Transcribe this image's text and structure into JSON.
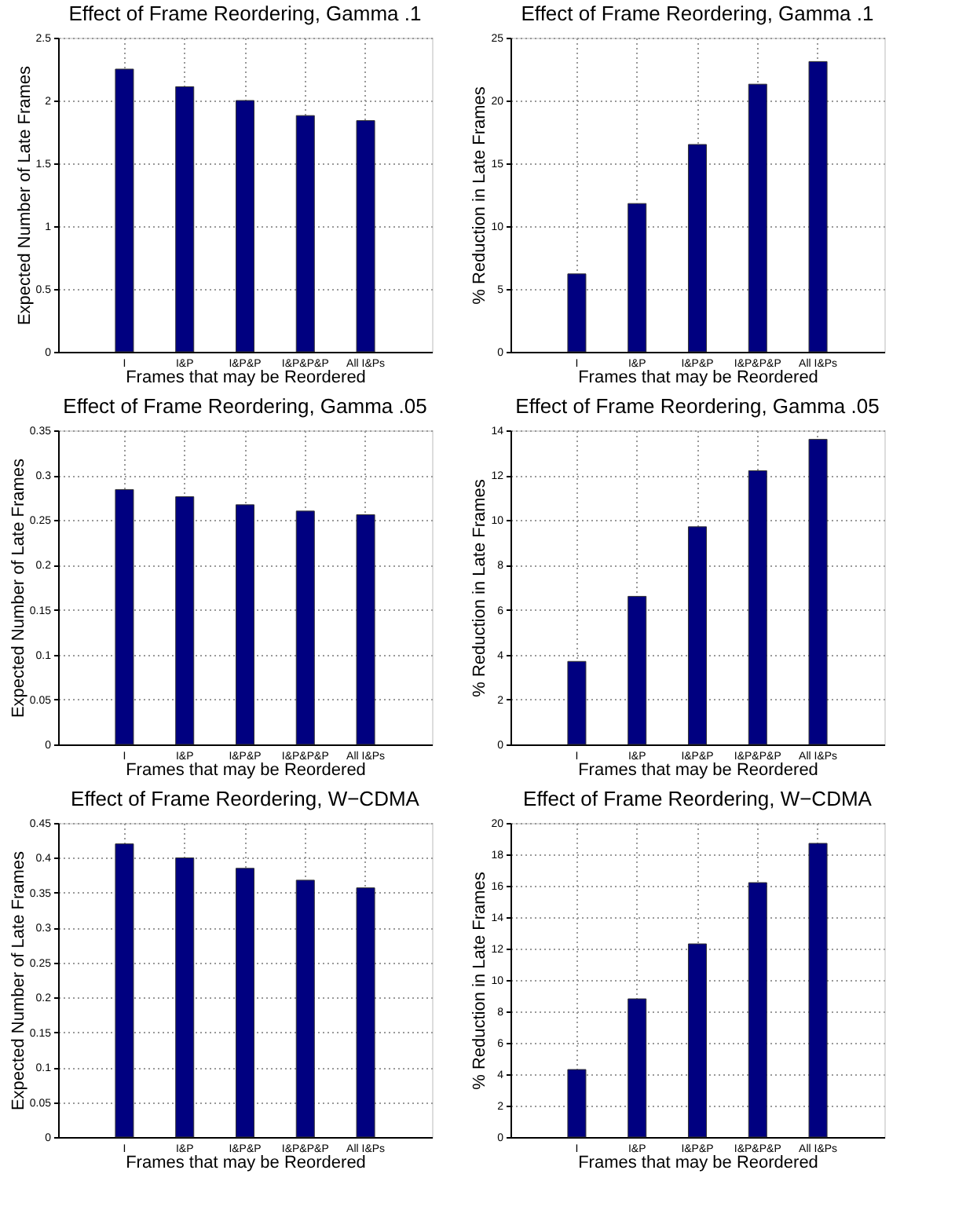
{
  "chart_data": [
    {
      "type": "bar",
      "title": "Effect of Frame Reordering, Gamma .1",
      "xlabel": "Frames that may be Reordered",
      "ylabel": "Expected Number of Late Frames",
      "categories": [
        "I",
        "I&P",
        "I&P&P",
        "I&P&P&P",
        "All I&Ps"
      ],
      "values": [
        2.25,
        2.11,
        2.0,
        1.88,
        1.84
      ],
      "color": "#000080",
      "ylim": [
        0,
        2.5
      ],
      "yticks": [
        0,
        0.5,
        1,
        1.5,
        2,
        2.5
      ],
      "grid": true
    },
    {
      "type": "bar",
      "title": "Effect of Frame Reordering, Gamma .1",
      "xlabel": "Frames that may be Reordered",
      "ylabel": "% Reduction in Late Frames",
      "categories": [
        "I",
        "I&P",
        "I&P&P",
        "I&P&P&P",
        "All I&Ps"
      ],
      "values": [
        6.2,
        11.8,
        16.5,
        21.3,
        23.1
      ],
      "color": "#000080",
      "ylim": [
        0,
        25
      ],
      "yticks": [
        0,
        5,
        10,
        15,
        20,
        25
      ],
      "grid": true
    },
    {
      "type": "bar",
      "title": "Effect of Frame Reordering, Gamma .05",
      "xlabel": "Frames that may be Reordered",
      "ylabel": "Expected Number of Late Frames",
      "categories": [
        "I",
        "I&P",
        "I&P&P",
        "I&P&P&P",
        "All I&Ps"
      ],
      "values": [
        0.284,
        0.276,
        0.267,
        0.26,
        0.256
      ],
      "color": "#000080",
      "ylim": [
        0,
        0.35
      ],
      "yticks": [
        0,
        0.05,
        0.1,
        0.15,
        0.2,
        0.25,
        0.3,
        0.35
      ],
      "grid": true
    },
    {
      "type": "bar",
      "title": "Effect of Frame Reordering, Gamma .05",
      "xlabel": "Frames that may be Reordered",
      "ylabel": "% Reduction in Late Frames",
      "categories": [
        "I",
        "I&P",
        "I&P&P",
        "I&P&P&P",
        "All I&Ps"
      ],
      "values": [
        3.7,
        6.6,
        9.7,
        12.2,
        13.6
      ],
      "color": "#000080",
      "ylim": [
        0,
        14
      ],
      "yticks": [
        0,
        2,
        4,
        6,
        8,
        10,
        12,
        14
      ],
      "grid": true
    },
    {
      "type": "bar",
      "title": "Effect of Frame Reordering, W−CDMA",
      "xlabel": "Frames that may be Reordered",
      "ylabel": "Expected Number of Late Frames",
      "categories": [
        "I",
        "I&P",
        "I&P&P",
        "I&P&P&P",
        "All I&Ps"
      ],
      "values": [
        0.42,
        0.4,
        0.385,
        0.368,
        0.357
      ],
      "color": "#000080",
      "ylim": [
        0,
        0.45
      ],
      "yticks": [
        0,
        0.05,
        0.1,
        0.15,
        0.2,
        0.25,
        0.3,
        0.35,
        0.4,
        0.45
      ],
      "grid": true
    },
    {
      "type": "bar",
      "title": "Effect of Frame Reordering, W−CDMA",
      "xlabel": "Frames that may be Reordered",
      "ylabel": "% Reduction in Late Frames",
      "categories": [
        "I",
        "I&P",
        "I&P&P",
        "I&P&P&P",
        "All I&Ps"
      ],
      "values": [
        4.3,
        8.8,
        12.3,
        16.2,
        18.7
      ],
      "color": "#000080",
      "ylim": [
        0,
        20
      ],
      "yticks": [
        0,
        2,
        4,
        6,
        8,
        10,
        12,
        14,
        16,
        18,
        20
      ],
      "grid": true
    }
  ]
}
